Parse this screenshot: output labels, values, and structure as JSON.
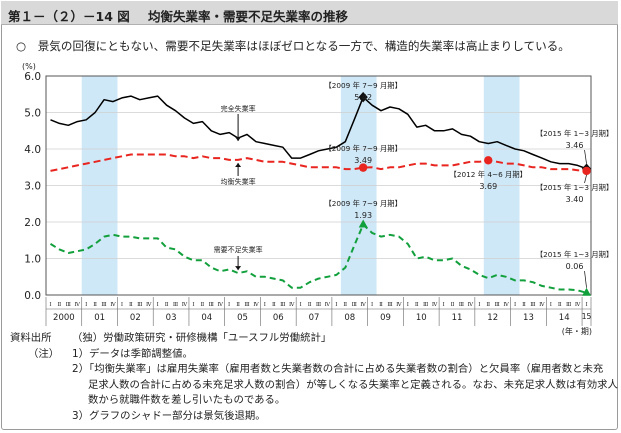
{
  "header": {
    "figure_id": "第１－（２）－14 図",
    "title": "均衡失業率・需要不足失業率の推移"
  },
  "lead": "○　景気の回復にともない、需要不足失業率はほぼゼロとなる一方で、構造的失業率は高止まりしている。",
  "chart_data": {
    "type": "line",
    "unit": "(%)",
    "xlabel": "(年・期)",
    "ylim": [
      0.0,
      6.0
    ],
    "y_ticks": [
      "0.0",
      "1.0",
      "2.0",
      "3.0",
      "4.0",
      "5.0",
      "6.0"
    ],
    "quarter_labels": [
      "Ⅰ",
      "Ⅱ",
      "Ⅲ",
      "Ⅳ"
    ],
    "x_quarters": 61,
    "year_labels": [
      "2000",
      "01",
      "02",
      "03",
      "04",
      "05",
      "06",
      "07",
      "08",
      "09",
      "10",
      "11",
      "12",
      "13",
      "14",
      "15"
    ],
    "recession_shading": [
      [
        4,
        7
      ],
      [
        33,
        36
      ],
      [
        49,
        52
      ]
    ],
    "colors": {
      "total": "#000000",
      "structural": "#e8251f",
      "demand": "#12a03c",
      "shade": "#cfe8f7"
    },
    "series": [
      {
        "name": "完全失業率",
        "values": [
          4.8,
          4.7,
          4.65,
          4.75,
          4.8,
          5.0,
          5.35,
          5.3,
          5.4,
          5.45,
          5.35,
          5.4,
          5.45,
          5.2,
          5.05,
          4.85,
          4.7,
          4.75,
          4.5,
          4.4,
          4.45,
          4.3,
          4.4,
          4.2,
          4.15,
          4.1,
          4.05,
          3.75,
          3.75,
          3.85,
          3.95,
          4.0,
          4.05,
          4.2,
          4.8,
          5.42,
          5.2,
          5.05,
          5.15,
          5.1,
          4.95,
          4.6,
          4.65,
          4.5,
          4.5,
          4.55,
          4.4,
          4.35,
          4.2,
          4.15,
          4.2,
          4.1,
          4.0,
          3.95,
          3.85,
          3.75,
          3.65,
          3.6,
          3.6,
          3.55,
          3.46
        ]
      },
      {
        "name": "均衡失業率",
        "values": [
          3.4,
          3.45,
          3.5,
          3.55,
          3.6,
          3.65,
          3.7,
          3.75,
          3.8,
          3.85,
          3.85,
          3.85,
          3.85,
          3.85,
          3.8,
          3.8,
          3.75,
          3.8,
          3.75,
          3.75,
          3.7,
          3.7,
          3.75,
          3.7,
          3.65,
          3.65,
          3.65,
          3.6,
          3.55,
          3.5,
          3.5,
          3.5,
          3.5,
          3.45,
          3.45,
          3.49,
          3.5,
          3.45,
          3.5,
          3.5,
          3.55,
          3.6,
          3.6,
          3.55,
          3.55,
          3.55,
          3.6,
          3.65,
          3.65,
          3.69,
          3.65,
          3.6,
          3.6,
          3.55,
          3.5,
          3.5,
          3.45,
          3.45,
          3.45,
          3.42,
          3.4
        ]
      },
      {
        "name": "需要不足失業率",
        "values": [
          1.4,
          1.25,
          1.15,
          1.2,
          1.25,
          1.4,
          1.6,
          1.65,
          1.6,
          1.6,
          1.55,
          1.55,
          1.55,
          1.3,
          1.25,
          1.05,
          0.95,
          0.95,
          0.75,
          0.65,
          0.7,
          0.6,
          0.65,
          0.5,
          0.5,
          0.45,
          0.4,
          0.2,
          0.2,
          0.35,
          0.45,
          0.5,
          0.55,
          0.75,
          1.35,
          1.93,
          1.7,
          1.6,
          1.65,
          1.6,
          1.4,
          1.0,
          1.05,
          0.95,
          0.95,
          1.0,
          0.8,
          0.7,
          0.55,
          0.46,
          0.55,
          0.5,
          0.4,
          0.4,
          0.35,
          0.25,
          0.2,
          0.15,
          0.15,
          0.13,
          0.06
        ]
      }
    ],
    "markers": [
      {
        "series": 0,
        "x": 35,
        "label": "【2009 年 7~9 月期】",
        "value": "5.42"
      },
      {
        "series": 1,
        "x": 35,
        "label": "【2009 年 7~9 月期】",
        "value": "3.49"
      },
      {
        "series": 1,
        "x": 49,
        "label": "【2012 年 4~6 月期】",
        "value": "3.69"
      },
      {
        "series": 2,
        "x": 35,
        "label": "【2009 年 7~9 月期】",
        "value": "1.93"
      },
      {
        "series": 0,
        "x": 60,
        "label": "【2015 年 1~3 月期】",
        "value": "3.46"
      },
      {
        "series": 1,
        "x": 60,
        "label": "【2015 年 1~3 月期】",
        "value": "3.40"
      },
      {
        "series": 2,
        "x": 60,
        "label": "【2015 年 1~3 月期】",
        "value": "0.06"
      }
    ]
  },
  "notes": {
    "source_label": "資料出所",
    "source": "（独）労働政策研究・研修機構「ユースフル労働統計」",
    "notes_label": "（注）",
    "items": [
      "1）データは季節調整値。",
      "2）「均衡失業率」は雇用失業率（雇用者数と失業者数の合計に占める失業者数の割合）と欠員率（雇用者数と未充",
      "足求人数の合計に占める未充足求人数の割合）が等しくなる失業率と定義される。なお、未充足求人数は有効求人",
      "数から就職件数を差し引いたものである。",
      "3）グラフのシャドー部分は景気後退期。"
    ]
  }
}
